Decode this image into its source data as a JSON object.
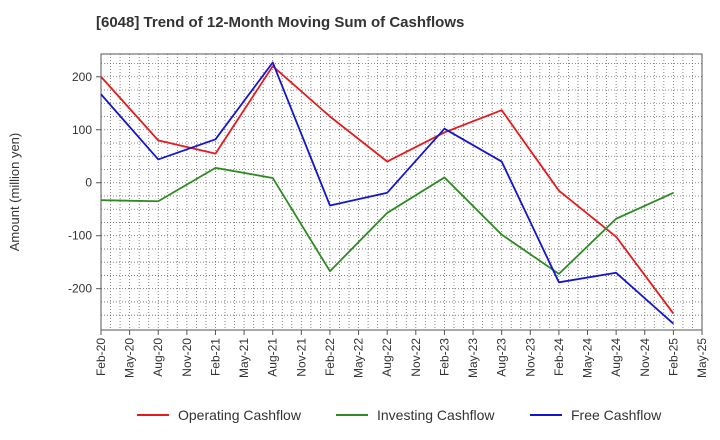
{
  "chart_data": {
    "type": "line",
    "title": "[6048]  Trend of 12-Month Moving Sum of Cashflows",
    "xlabel": "",
    "ylabel": "Amount (million yen)",
    "ylim": [
      -278,
      243
    ],
    "yticks": [
      200,
      100,
      0,
      -100,
      -200
    ],
    "ytick_labels": [
      "200",
      "100",
      "0",
      "-100",
      "-200"
    ],
    "xlim": [
      0,
      63
    ],
    "xtick_positions": [
      0,
      3,
      6,
      9,
      12,
      15,
      18,
      21,
      24,
      27,
      30,
      33,
      36,
      39,
      42,
      45,
      48,
      51,
      54,
      57,
      60,
      63
    ],
    "xtick_labels": [
      "Feb-20",
      "May-20",
      "Aug-20",
      "Nov-20",
      "Feb-21",
      "May-21",
      "Aug-21",
      "Nov-21",
      "Feb-22",
      "May-22",
      "Aug-22",
      "Nov-22",
      "Feb-23",
      "May-23",
      "Aug-23",
      "Nov-23",
      "Feb-24",
      "May-24",
      "Aug-24",
      "Nov-24",
      "Feb-25",
      "May-25"
    ],
    "grid": true,
    "legend_position": "bottom",
    "series": [
      {
        "name": "Operating Cashflow",
        "color": "#e41a1c",
        "x": [
          "Feb-20",
          "Aug-20",
          "Feb-21",
          "Aug-21",
          "Feb-22",
          "Aug-22",
          "Feb-23",
          "Aug-23",
          "Feb-24",
          "Aug-24",
          "Feb-25"
        ],
        "values": [
          200,
          80,
          55,
          220,
          125,
          40,
          95,
          137,
          -15,
          -102,
          -247
        ]
      },
      {
        "name": "Investing Cashflow",
        "color": "#2e8b22",
        "x": [
          "Feb-20",
          "Aug-20",
          "Feb-21",
          "Aug-21",
          "Feb-22",
          "Aug-22",
          "Feb-23",
          "Aug-23",
          "Feb-24",
          "Aug-24",
          "Feb-25"
        ],
        "values": [
          -33,
          -35,
          28,
          9,
          -167,
          -57,
          10,
          -98,
          -172,
          -68,
          -19
        ]
      },
      {
        "name": "Free Cashflow",
        "color": "#1515d0",
        "x": [
          "Feb-20",
          "Aug-20",
          "Feb-21",
          "Aug-21",
          "Feb-22",
          "Aug-22",
          "Feb-23",
          "Aug-23",
          "Feb-24",
          "Aug-24",
          "Feb-25"
        ],
        "values": [
          167,
          44,
          82,
          227,
          -43,
          -19,
          102,
          40,
          -188,
          -170,
          -266
        ]
      }
    ]
  }
}
